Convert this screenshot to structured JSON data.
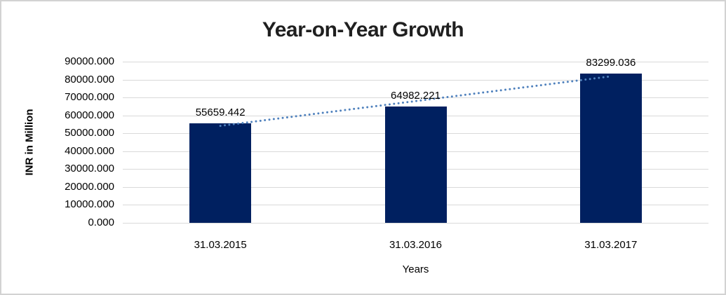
{
  "chart_data": {
    "type": "bar",
    "title": "Year-on-Year Growth",
    "xlabel": "Years",
    "ylabel": "INR in Million",
    "categories": [
      "31.03.2015",
      "31.03.2016",
      "31.03.2017"
    ],
    "values": [
      55659.442,
      64982.221,
      83299.036
    ],
    "value_labels": [
      "55659.442",
      "64982.221",
      "83299.036"
    ],
    "ylim": [
      0,
      90000
    ],
    "ytick_step": 10000,
    "ytick_labels": [
      "0.000",
      "10000.000",
      "20000.000",
      "30000.000",
      "40000.000",
      "50000.000",
      "60000.000",
      "70000.000",
      "80000.000",
      "90000.000"
    ],
    "grid": true,
    "legend_position": "none",
    "bar_color": "#002060",
    "trendline": {
      "type": "linear",
      "style": "dotted",
      "color": "#4f81bd"
    }
  }
}
